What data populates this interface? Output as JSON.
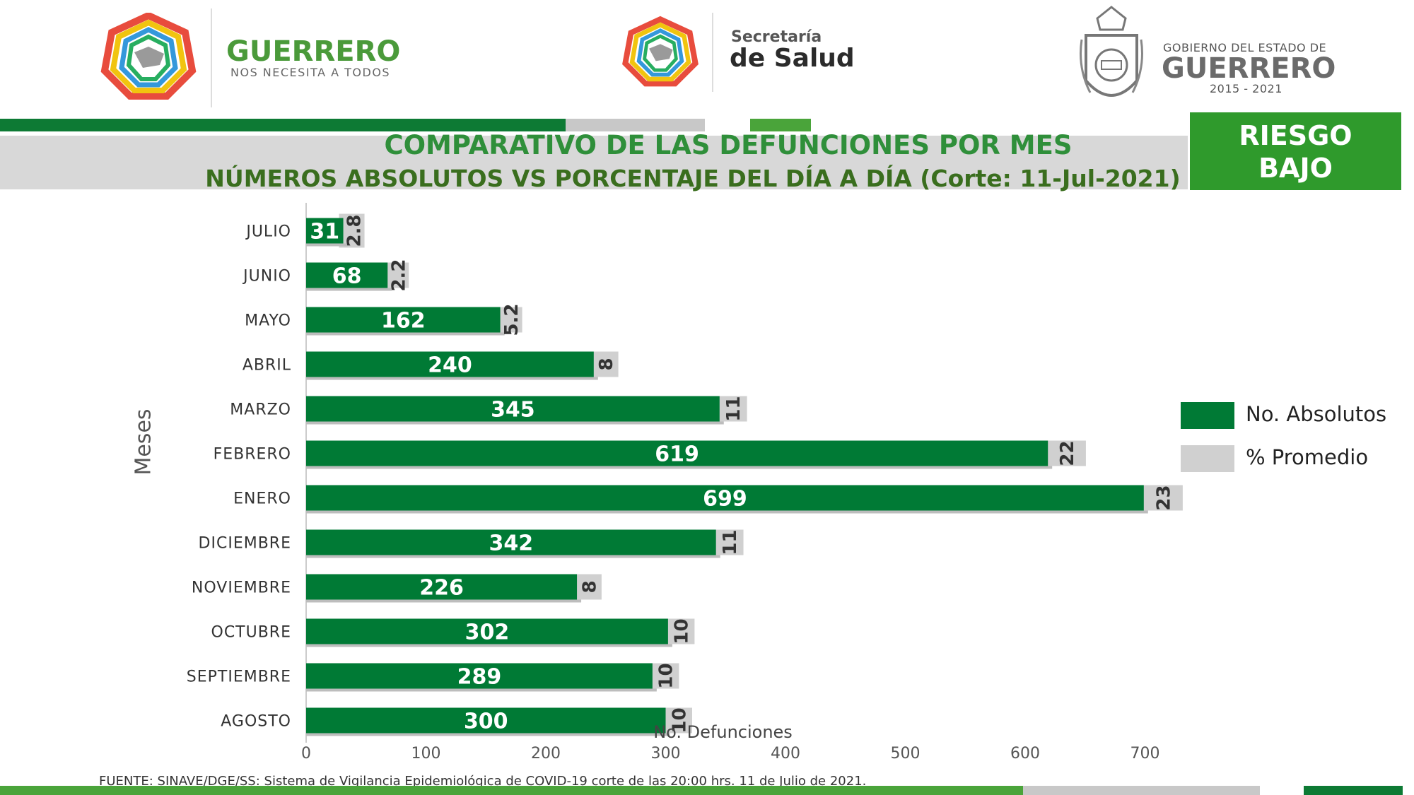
{
  "header": {
    "left_logo": {
      "title": "GUERRERO",
      "subtitle": "NOS NECESITA A TODOS"
    },
    "center_logo": {
      "line1": "Secretaría",
      "line2": "de Salud"
    },
    "right_logo": {
      "line1": "GOBIERNO DEL ESTADO DE",
      "line2": "GUERRERO",
      "line3": "2015 - 2021"
    }
  },
  "title": {
    "line1": "COMPARATIVO DE LAS DEFUNCIONES POR MES",
    "line2": "NÚMEROS ABSOLUTOS VS PORCENTAJE DEL DÍA A DÍA   (Corte: 11-Jul-2021)"
  },
  "risk_badge": {
    "line1": "RIESGO",
    "line2": "BAJO"
  },
  "colors": {
    "absolute": "#007a35",
    "percent": "#d0d0d0",
    "header_green": "#0d7a34",
    "light_green": "#4aa43a",
    "gray": "#c8c8c8",
    "riesgo": "#2f9a2c"
  },
  "source": "FUENTE: SINAVE/DGE/SS: Sistema de Vigilancia Epidemiológica de COVID-19 corte de las 20:00 hrs. 11 de Julio de 2021.",
  "chart_data": {
    "type": "bar",
    "orientation": "horizontal",
    "ylabel": "Meses",
    "xlabel": "No. Defunciones",
    "xlim": [
      0,
      700
    ],
    "xticks": [
      "0",
      "100",
      "200",
      "300",
      "400",
      "500",
      "600",
      "700"
    ],
    "categories": [
      "JULIO",
      "JUNIO",
      "MAYO",
      "ABRIL",
      "MARZO",
      "FEBRERO",
      "ENERO",
      "DICIEMBRE",
      "NOVIEMBRE",
      "OCTUBRE",
      "SEPTIEMBRE",
      "AGOSTO"
    ],
    "series": [
      {
        "name": "No. Absolutos",
        "values": [
          31,
          68,
          162,
          240,
          345,
          619,
          699,
          342,
          226,
          302,
          289,
          300
        ],
        "labels": [
          "31",
          "68",
          "162",
          "240",
          "345",
          "619",
          "699",
          "342",
          "226",
          "302",
          "289",
          "300"
        ]
      },
      {
        "name": "% Promedio",
        "values": [
          2.8,
          2.2,
          5.2,
          8,
          11,
          22,
          23,
          11,
          8,
          10,
          10,
          10
        ],
        "labels": [
          "2.8",
          "2.2",
          "5.2",
          "8",
          "11",
          "22",
          "23",
          "11",
          "8",
          "10",
          "10",
          "10"
        ]
      }
    ],
    "legend_position": "right",
    "grid": false
  }
}
